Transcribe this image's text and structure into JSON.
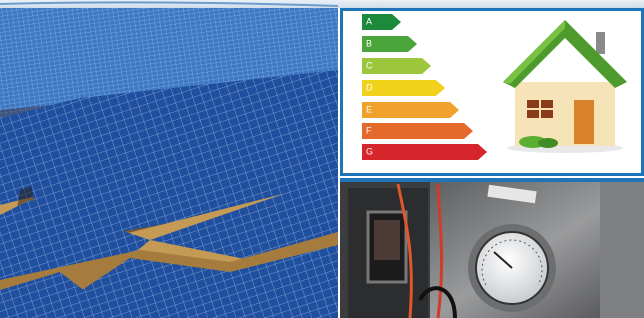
{
  "energy_label": {
    "classes": [
      "A",
      "B",
      "C",
      "D",
      "E",
      "F",
      "G"
    ]
  }
}
